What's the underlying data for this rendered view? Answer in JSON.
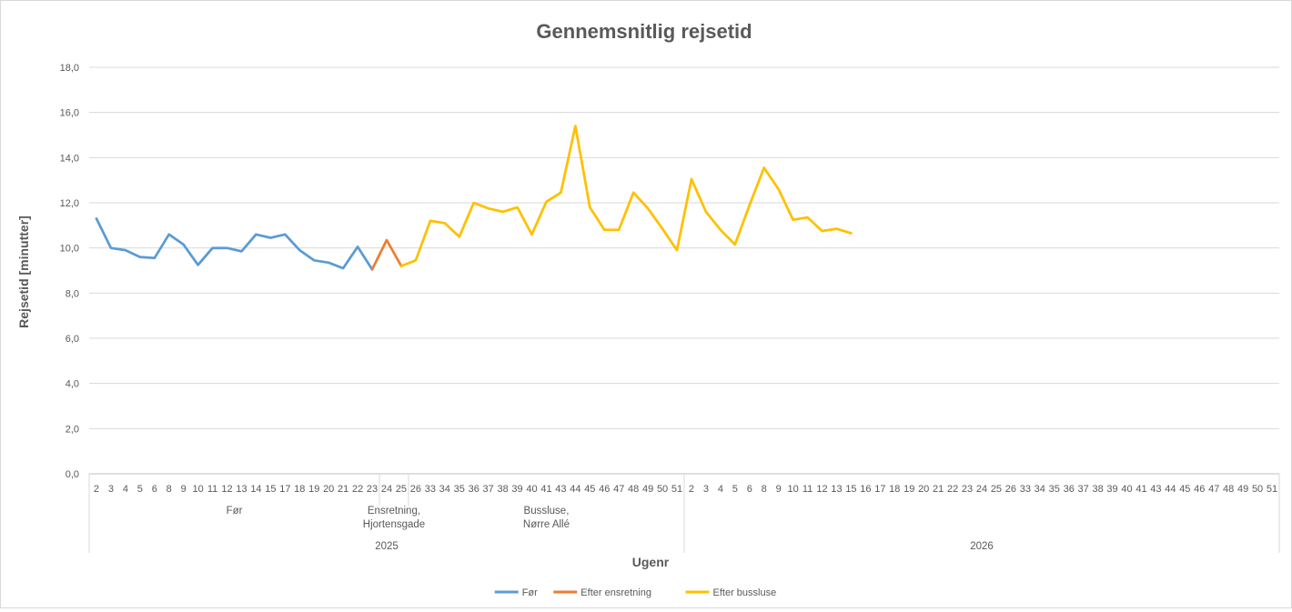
{
  "chart_data": {
    "type": "line",
    "title": "Gennemsnitlig rejsetid",
    "xlabel": "Ugenr",
    "ylabel": "Rejsetid [minutter]",
    "ylim": [
      0,
      18
    ],
    "ytick_step": 2,
    "ytick_labels": [
      "0,0",
      "2,0",
      "4,0",
      "6,0",
      "8,0",
      "10,0",
      "12,0",
      "14,0",
      "16,0",
      "18,0"
    ],
    "grid": true,
    "legend_position": "bottom",
    "x_week_labels": [
      "2",
      "3",
      "4",
      "5",
      "6",
      "8",
      "9",
      "10",
      "11",
      "12",
      "13",
      "14",
      "15",
      "17",
      "18",
      "19",
      "20",
      "21",
      "22",
      "23",
      "24",
      "25",
      "26",
      "33",
      "34",
      "35",
      "36",
      "37",
      "38",
      "39",
      "40",
      "41",
      "43",
      "44",
      "45",
      "46",
      "47",
      "48",
      "49",
      "50",
      "51",
      "2",
      "3",
      "4",
      "5",
      "6",
      "8",
      "9",
      "10",
      "11",
      "12",
      "13",
      "15",
      "16",
      "17",
      "18",
      "19",
      "20",
      "21",
      "22",
      "23",
      "24",
      "25",
      "26",
      "33",
      "34",
      "35",
      "36",
      "37",
      "38",
      "39",
      "40",
      "41",
      "43",
      "44",
      "45",
      "46",
      "47",
      "48",
      "49",
      "50",
      "51"
    ],
    "phase_groups": [
      {
        "lines": [
          "Før"
        ],
        "start": 0,
        "end": 19
      },
      {
        "lines": [
          "Ensretning,",
          "Hjortensgade"
        ],
        "start": 20,
        "end": 21
      },
      {
        "lines": [
          "Bussluse,",
          "Nørre Allé"
        ],
        "start": 22,
        "end": 40
      }
    ],
    "year_groups": [
      {
        "label": "2025",
        "start": 0,
        "end": 40
      },
      {
        "label": "2026",
        "start": 41,
        "end": 81
      }
    ],
    "series": [
      {
        "name": "Før",
        "color": "#5b9bd5",
        "start_index": 0,
        "values": [
          11.3,
          10.0,
          9.9,
          9.6,
          9.55,
          10.6,
          10.15,
          9.25,
          10.0,
          10.0,
          9.85,
          10.6,
          10.45,
          10.6,
          9.9,
          9.45,
          9.35,
          9.1,
          10.05,
          9.05
        ]
      },
      {
        "name": "Efter ensretning",
        "color": "#ed7d31",
        "start_index": 19,
        "values": [
          9.05,
          10.35,
          9.2
        ]
      },
      {
        "name": "Efter bussluse",
        "color": "#ffc000",
        "start_index": 21,
        "values": [
          9.2,
          9.45,
          11.2,
          11.1,
          10.5,
          12.0,
          11.75,
          11.6,
          11.8,
          10.6,
          12.05,
          12.45,
          15.4,
          11.8,
          10.8,
          10.8,
          12.45,
          11.75,
          10.85,
          9.9,
          13.05,
          11.6,
          10.8,
          10.15,
          11.9,
          13.55,
          12.6,
          11.25,
          11.35,
          10.75,
          10.85,
          10.65
        ]
      }
    ]
  }
}
